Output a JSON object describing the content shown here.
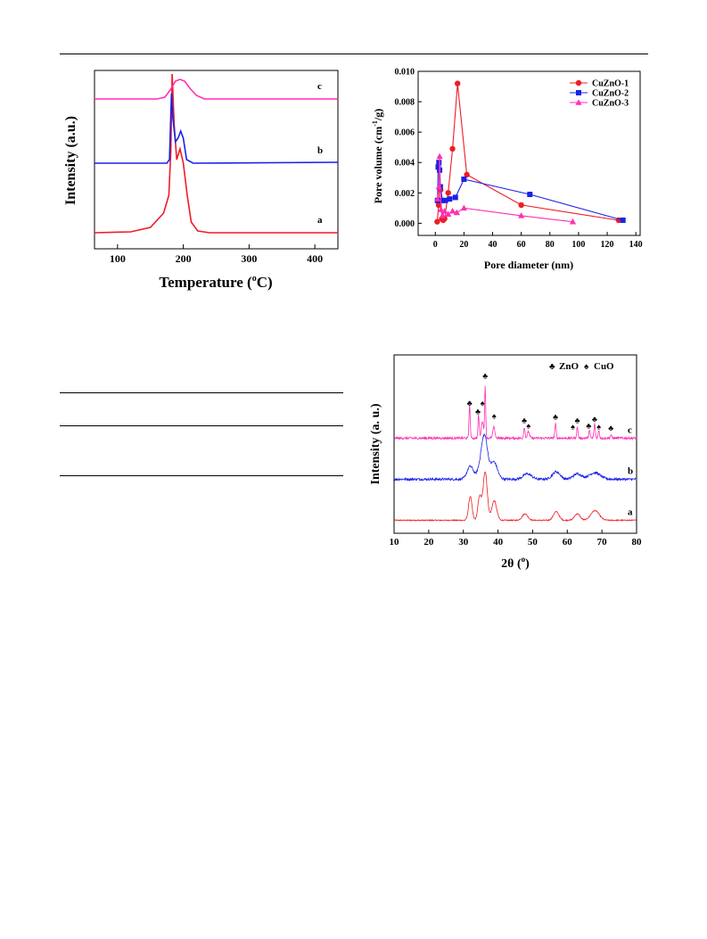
{
  "colors": {
    "red": "#ee1c25",
    "blue": "#1a22e6",
    "magenta": "#ff2fb3"
  },
  "tpr": {
    "type": "line",
    "xlabel": "Temperature (",
    "xlabel_sup": "o",
    "xlabel_tail": "C)",
    "ylabel": "Intensity (a.u.)",
    "xlim": [
      65,
      435
    ],
    "xticks": [
      100,
      200,
      300,
      400
    ],
    "series": [
      {
        "label": "a",
        "baseline": 0.09,
        "color": "red",
        "points": [
          [
            65,
            0.09
          ],
          [
            120,
            0.095
          ],
          [
            150,
            0.12
          ],
          [
            170,
            0.2
          ],
          [
            178,
            0.3
          ],
          [
            181,
            0.55
          ],
          [
            183,
            0.98
          ],
          [
            186,
            0.7
          ],
          [
            190,
            0.5
          ],
          [
            195,
            0.56
          ],
          [
            200,
            0.48
          ],
          [
            206,
            0.3
          ],
          [
            212,
            0.15
          ],
          [
            222,
            0.1
          ],
          [
            240,
            0.09
          ],
          [
            435,
            0.09
          ]
        ]
      },
      {
        "label": "b",
        "baseline": 0.48,
        "color": "blue",
        "points": [
          [
            65,
            0.48
          ],
          [
            175,
            0.48
          ],
          [
            179,
            0.5
          ],
          [
            182,
            0.87
          ],
          [
            184,
            0.74
          ],
          [
            188,
            0.6
          ],
          [
            192,
            0.62
          ],
          [
            196,
            0.66
          ],
          [
            200,
            0.62
          ],
          [
            205,
            0.5
          ],
          [
            215,
            0.48
          ],
          [
            435,
            0.485
          ]
        ]
      },
      {
        "label": "c",
        "baseline": 0.84,
        "color": "magenta",
        "points": [
          [
            65,
            0.84
          ],
          [
            160,
            0.84
          ],
          [
            172,
            0.85
          ],
          [
            180,
            0.89
          ],
          [
            188,
            0.94
          ],
          [
            195,
            0.95
          ],
          [
            202,
            0.94
          ],
          [
            210,
            0.9
          ],
          [
            220,
            0.86
          ],
          [
            232,
            0.84
          ],
          [
            435,
            0.84
          ]
        ]
      }
    ]
  },
  "pores": {
    "type": "line",
    "xlabel": "Pore diameter (nm)",
    "ylabel_pre": "Pore volume (cm",
    "ylabel_sup": "-1",
    "ylabel_post": "/g)",
    "xlim": [
      -12,
      143
    ],
    "ylim": [
      -0.0008,
      0.01
    ],
    "xticks": [
      0,
      20,
      40,
      60,
      80,
      100,
      120,
      140
    ],
    "yticks": [
      "0.000",
      "0.002",
      "0.004",
      "0.006",
      "0.008",
      "0.010"
    ],
    "legend": "top-right",
    "series": [
      {
        "name": "CuZnO-1",
        "color": "red",
        "marker": "circle",
        "points": [
          [
            1.3,
            0.0001
          ],
          [
            2.3,
            0.0012
          ],
          [
            3,
            0.0023
          ],
          [
            3.7,
            0.0022
          ],
          [
            4.5,
            0.0003
          ],
          [
            5.5,
            0.0002
          ],
          [
            6.5,
            0.0003
          ],
          [
            9,
            0.002
          ],
          [
            12,
            0.0049
          ],
          [
            15.5,
            0.0092
          ],
          [
            22,
            0.0032
          ],
          [
            60,
            0.0012
          ],
          [
            128,
            0.0002
          ]
        ]
      },
      {
        "name": "CuZnO-2",
        "color": "blue",
        "marker": "square",
        "points": [
          [
            1.5,
            0.0015
          ],
          [
            2,
            0.0037
          ],
          [
            2.5,
            0.004
          ],
          [
            3,
            0.0035
          ],
          [
            3.5,
            0.0024
          ],
          [
            5,
            0.0015
          ],
          [
            7,
            0.0015
          ],
          [
            10,
            0.0016
          ],
          [
            14,
            0.0017
          ],
          [
            20,
            0.0029
          ],
          [
            66,
            0.0019
          ],
          [
            131,
            0.0002
          ]
        ]
      },
      {
        "name": "CuZnO-3",
        "color": "magenta",
        "marker": "triangle",
        "points": [
          [
            1.5,
            0.0016
          ],
          [
            2.5,
            0.0024
          ],
          [
            3,
            0.0044
          ],
          [
            4,
            0.0009
          ],
          [
            5,
            0.0005
          ],
          [
            6.5,
            0.0008
          ],
          [
            9,
            0.0006
          ],
          [
            12,
            0.0008
          ],
          [
            15,
            0.0007
          ],
          [
            20,
            0.001
          ],
          [
            60,
            0.0005
          ],
          [
            96,
            0.0001
          ]
        ]
      }
    ]
  },
  "xrd": {
    "type": "line",
    "xlabel": "2θ (",
    "xlabel_sup": "o",
    "xlabel_tail": ")",
    "ylabel": "Intensity (a. u.)",
    "xlim": [
      10,
      80
    ],
    "xticks": [
      10,
      20,
      30,
      40,
      50,
      60,
      70,
      80
    ],
    "legend_zno": "ZnO",
    "legend_cuo": "CuO",
    "zno_symbol": "♣",
    "cuo_symbol": "♠",
    "series": [
      {
        "label": "a",
        "color": "red",
        "baseline": 0.12,
        "scale": 0.45,
        "peaks": [
          [
            32,
            0.22,
            0.5
          ],
          [
            34.7,
            0.22,
            0.5
          ],
          [
            36.3,
            0.45,
            0.6
          ],
          [
            38.9,
            0.18,
            0.7
          ],
          [
            47.8,
            0.06,
            0.8
          ],
          [
            56.8,
            0.08,
            0.8
          ],
          [
            62.9,
            0.06,
            0.8
          ],
          [
            68,
            0.09,
            1.2
          ]
        ]
      },
      {
        "label": "b",
        "color": "blue",
        "baseline": 0.5,
        "scale": 1.0,
        "peaks": [
          [
            32,
            0.12,
            0.9
          ],
          [
            35.5,
            0.2,
            1.0
          ],
          [
            36.3,
            0.25,
            0.8
          ],
          [
            38.8,
            0.16,
            1.0
          ],
          [
            48.5,
            0.05,
            1.2
          ],
          [
            56.8,
            0.07,
            1.1
          ],
          [
            62.9,
            0.05,
            1.2
          ],
          [
            67.9,
            0.06,
            1.6
          ]
        ]
      },
      {
        "label": "c",
        "color": "magenta",
        "baseline": 0.88,
        "scale": 1.0,
        "peaks": [
          [
            31.8,
            0.3,
            0.18
          ],
          [
            34.4,
            0.21,
            0.18
          ],
          [
            35.5,
            0.16,
            0.3
          ],
          [
            36.3,
            0.47,
            0.16
          ],
          [
            38.8,
            0.1,
            0.3
          ],
          [
            47.6,
            0.1,
            0.2
          ],
          [
            48.8,
            0.06,
            0.3
          ],
          [
            56.6,
            0.13,
            0.2
          ],
          [
            62.9,
            0.1,
            0.2
          ],
          [
            66.4,
            0.07,
            0.2
          ],
          [
            67.9,
            0.13,
            0.2
          ],
          [
            69.1,
            0.07,
            0.2
          ],
          [
            72.6,
            0.03,
            0.2
          ]
        ]
      }
    ],
    "markers": [
      {
        "x": 31.8,
        "y": 1.18,
        "kind": "zno"
      },
      {
        "x": 34.2,
        "y": 1.1,
        "kind": "zno"
      },
      {
        "x": 35.5,
        "y": 1.18,
        "kind": "cuo"
      },
      {
        "x": 36.3,
        "y": 1.43,
        "kind": "zno"
      },
      {
        "x": 38.9,
        "y": 1.06,
        "kind": "cuo"
      },
      {
        "x": 47.6,
        "y": 1.02,
        "kind": "zno"
      },
      {
        "x": 48.8,
        "y": 0.97,
        "kind": "cuo"
      },
      {
        "x": 56.6,
        "y": 1.05,
        "kind": "zno"
      },
      {
        "x": 61.6,
        "y": 0.96,
        "kind": "cuo"
      },
      {
        "x": 62.9,
        "y": 1.02,
        "kind": "zno"
      },
      {
        "x": 66.2,
        "y": 0.97,
        "kind": "zno"
      },
      {
        "x": 67.9,
        "y": 1.03,
        "kind": "zno"
      },
      {
        "x": 69.1,
        "y": 0.96,
        "kind": "cuo"
      },
      {
        "x": 72.6,
        "y": 0.95,
        "kind": "zno"
      }
    ]
  }
}
